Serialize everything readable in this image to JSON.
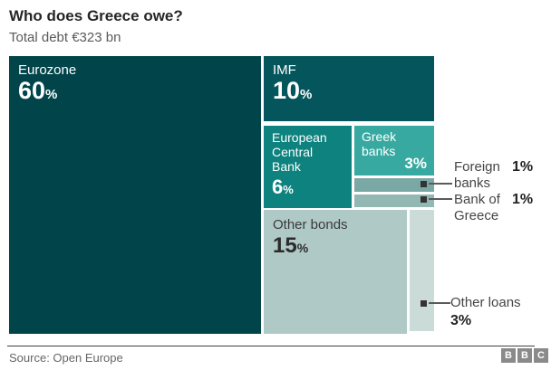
{
  "header": {
    "title": "Who does Greece owe?",
    "subtitle": "Total debt €323 bn"
  },
  "chart_data": {
    "type": "treemap",
    "title": "Who does Greece owe?",
    "subtitle": "Total debt €323 bn",
    "total_debt": "€323 bn",
    "unit": "%",
    "slices": [
      {
        "label": "Eurozone",
        "percent": 60,
        "color": "#01454a"
      },
      {
        "label": "IMF",
        "percent": 10,
        "color": "#05565c"
      },
      {
        "label": "European Central Bank",
        "percent": 6,
        "color": "#0e827e"
      },
      {
        "label": "Greek banks",
        "percent": 3,
        "color": "#38a9a1"
      },
      {
        "label": "Foreign banks",
        "percent": 1,
        "color": "#79a8a5"
      },
      {
        "label": "Bank of Greece",
        "percent": 1,
        "color": "#93b7b3"
      },
      {
        "label": "Other bonds",
        "percent": 15,
        "color": "#afc9c7"
      },
      {
        "label": "Other loans",
        "percent": 3,
        "color": "#cbdbd8"
      }
    ]
  },
  "blocks": {
    "eurozone": {
      "label": "Eurozone",
      "value": "60",
      "pct": "%"
    },
    "imf": {
      "label": "IMF",
      "value": "10",
      "pct": "%"
    },
    "ecb": {
      "label": "European Central Bank",
      "value": "6",
      "pct": "%"
    },
    "greek_banks": {
      "label": "Greek banks",
      "value": "3%"
    },
    "other_bonds": {
      "label": "Other bonds",
      "value": "15",
      "pct": "%"
    }
  },
  "callouts": {
    "foreign_banks": {
      "label": "Foreign banks",
      "value": "1%"
    },
    "bank_of_greece": {
      "label": "Bank of Greece",
      "value": "1%"
    },
    "other_loans": {
      "label": "Other loans",
      "value": "3%"
    }
  },
  "footer": {
    "source": "Source: Open Europe"
  },
  "logo": {
    "b1": "B",
    "b2": "B",
    "b3": "C"
  }
}
